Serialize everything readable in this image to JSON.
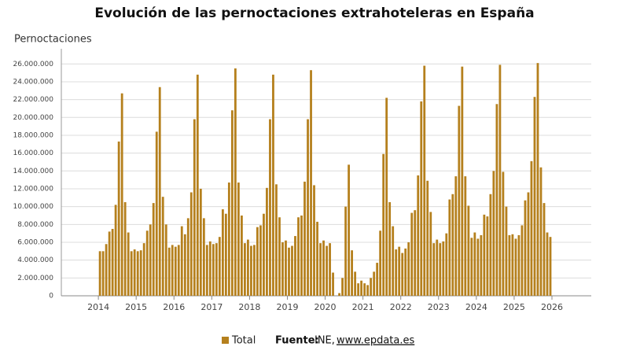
{
  "chart_data": {
    "type": "bar",
    "title": "Evolución de las pernoctaciones extrahoteleras en España",
    "y_label": "Pernoctaciones",
    "color": "#b5801d",
    "grid": true,
    "xlim": [
      2013.02,
      2027.04
    ],
    "xticks": [
      2014,
      2015,
      2016,
      2017,
      2018,
      2019,
      2020,
      2021,
      2022,
      2023,
      2024,
      2025,
      2026
    ],
    "ylim": [
      0,
      27700000
    ],
    "yticks": [
      0,
      {
        "value": 2000000,
        "label": "2.000.000"
      },
      {
        "value": 4000000,
        "label": "4.000.000"
      },
      {
        "value": 6000000,
        "label": "6.000.000"
      },
      {
        "value": 8000000,
        "label": "8.000.000"
      },
      {
        "value": 10000000,
        "label": "10.000.000"
      },
      {
        "value": 12000000,
        "label": "12.000.000"
      },
      {
        "value": 14000000,
        "label": "14.000.000"
      },
      {
        "value": 16000000,
        "label": "16.000.000"
      },
      {
        "value": 18000000,
        "label": "18.000.000"
      },
      {
        "value": 20000000,
        "label": "20.000.000"
      },
      {
        "value": 22000000,
        "label": "22.000.000"
      },
      {
        "value": 24000000,
        "label": "24.000.000"
      },
      {
        "value": 26000000,
        "label": "26.000.000"
      }
    ],
    "x": [
      2014.042,
      2014.125,
      2014.208,
      2014.292,
      2014.375,
      2014.458,
      2014.542,
      2014.625,
      2014.708,
      2014.792,
      2014.875,
      2014.958,
      2015.042,
      2015.125,
      2015.208,
      2015.292,
      2015.375,
      2015.458,
      2015.542,
      2015.625,
      2015.708,
      2015.792,
      2015.875,
      2015.958,
      2016.042,
      2016.125,
      2016.208,
      2016.292,
      2016.375,
      2016.458,
      2016.542,
      2016.625,
      2016.708,
      2016.792,
      2016.875,
      2016.958,
      2017.042,
      2017.125,
      2017.208,
      2017.292,
      2017.375,
      2017.458,
      2017.542,
      2017.625,
      2017.708,
      2017.792,
      2017.875,
      2017.958,
      2018.042,
      2018.125,
      2018.208,
      2018.292,
      2018.375,
      2018.458,
      2018.542,
      2018.625,
      2018.708,
      2018.792,
      2018.875,
      2018.958,
      2019.042,
      2019.125,
      2019.208,
      2019.292,
      2019.375,
      2019.458,
      2019.542,
      2019.625,
      2019.708,
      2019.792,
      2019.875,
      2019.958,
      2020.042,
      2020.125,
      2020.208,
      2020.292,
      2020.375,
      2020.458,
      2020.542,
      2020.625,
      2020.708,
      2020.792,
      2020.875,
      2020.958,
      2021.042,
      2021.125,
      2021.208,
      2021.292,
      2021.375,
      2021.458,
      2021.542,
      2021.625,
      2021.708,
      2021.792,
      2021.875,
      2021.958,
      2022.042,
      2022.125,
      2022.208,
      2022.292,
      2022.375,
      2022.458,
      2022.542,
      2022.625,
      2022.708,
      2022.792,
      2022.875,
      2022.958,
      2023.042,
      2023.125,
      2023.208,
      2023.292,
      2023.375,
      2023.458,
      2023.542,
      2023.625,
      2023.708,
      2023.792,
      2023.875,
      2023.958,
      2024.042,
      2024.125,
      2024.208,
      2024.292,
      2024.375,
      2024.458,
      2024.542,
      2024.625,
      2024.708,
      2024.792,
      2024.875,
      2024.958,
      2025.042,
      2025.125,
      2025.208,
      2025.292,
      2025.375,
      2025.458,
      2025.542,
      2025.625,
      2025.708,
      2025.792,
      2025.875,
      2025.958
    ],
    "series": [
      {
        "name": "Total",
        "color": "#b5801d",
        "values": [
          5000000.0,
          5000000.0,
          5800000.0,
          7200000.0,
          7500000.0,
          10200000.0,
          17300000.0,
          22700000.0,
          10500000.0,
          7100000.0,
          5000000.0,
          5200000.0,
          5000000.0,
          5100000.0,
          5900000.0,
          7300000.0,
          8000000.0,
          10400000.0,
          18400000.0,
          23400000.0,
          11100000.0,
          8000000.0,
          5400000.0,
          5700000.0,
          5500000.0,
          5700000.0,
          7800000.0,
          6900000.0,
          8700000.0,
          11600000.0,
          19800000.0,
          24800000.0,
          12000000.0,
          8700000.0,
          5700000.0,
          6100000.0,
          5800000.0,
          5900000.0,
          6600000.0,
          9700000.0,
          9200000.0,
          12700000.0,
          20800000.0,
          25500000.0,
          12700000.0,
          9000000.0,
          5900000.0,
          6300000.0,
          5600000.0,
          5700000.0,
          7700000.0,
          7900000.0,
          9200000.0,
          12100000.0,
          19800000.0,
          24800000.0,
          12500000.0,
          8800000.0,
          6000000.0,
          6200000.0,
          5400000.0,
          5600000.0,
          6700000.0,
          8800000.0,
          9000000.0,
          12800000.0,
          19800000.0,
          25300000.0,
          12400000.0,
          8300000.0,
          5900000.0,
          6200000.0,
          5600000.0,
          5900000.0,
          2600000.0,
          0,
          300000.0,
          2000000.0,
          10000000.0,
          14700000.0,
          5100000.0,
          2700000.0,
          1400000.0,
          1700000.0,
          1400000.0,
          1200000.0,
          2000000.0,
          2700000.0,
          3700000.0,
          7300000.0,
          15900000.0,
          22200000.0,
          10500000.0,
          7800000.0,
          5200000.0,
          5500000.0,
          4800000.0,
          5300000.0,
          6000000.0,
          9300000.0,
          9600000.0,
          13500000.0,
          21800000.0,
          25800000.0,
          12900000.0,
          9400000.0,
          5900000.0,
          6300000.0,
          5900000.0,
          6100000.0,
          7000000.0,
          10800000.0,
          11400000.0,
          13400000.0,
          21300000.0,
          25700000.0,
          13400000.0,
          10100000.0,
          6500000.0,
          7100000.0,
          6400000.0,
          6800000.0,
          9100000.0,
          8900000.0,
          11400000.0,
          14000000.0,
          21500000.0,
          25900000.0,
          13900000.0,
          10000000.0,
          6800000.0,
          6900000.0,
          6400000.0,
          6800000.0,
          7900000.0,
          10700000.0,
          11600000.0,
          15100000.0,
          22300000.0,
          26100000.0,
          14400000.0,
          10400000.0,
          7100000.0,
          6600000.0
        ]
      }
    ],
    "source_label": "Fuente:",
    "source_name": "INE,",
    "source_url": "www.epdata.es"
  }
}
